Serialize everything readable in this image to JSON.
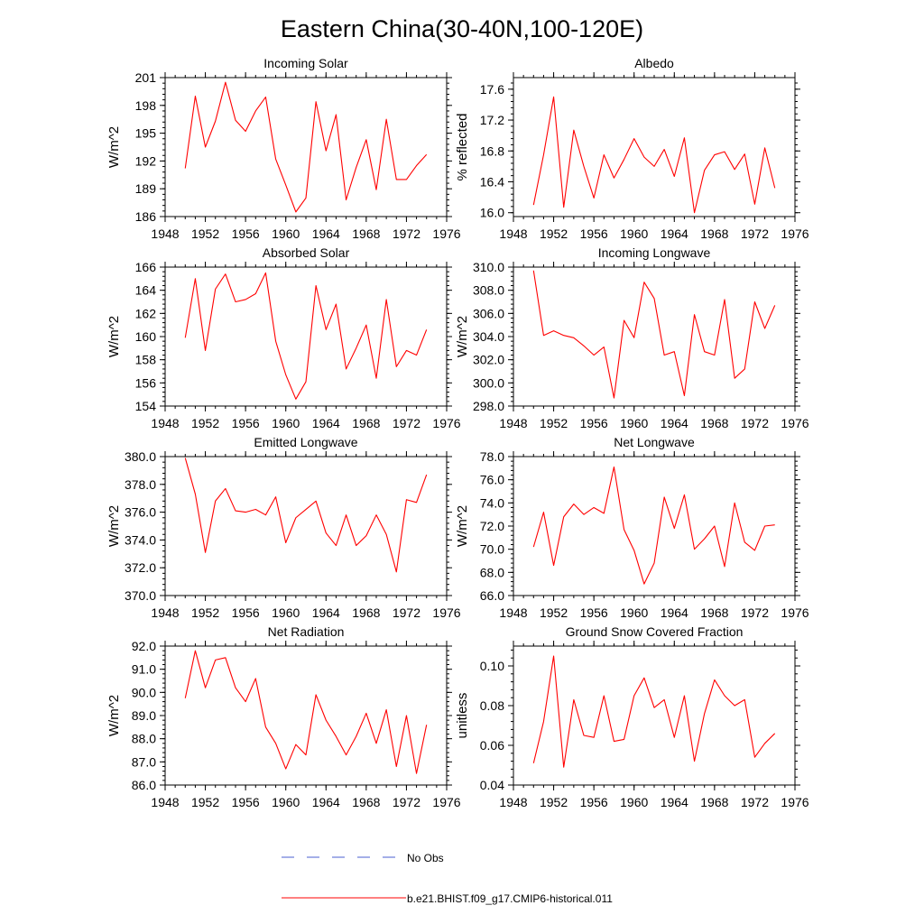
{
  "figure": {
    "title": "Eastern China(30-40N,100-120E)",
    "legend": {
      "obs_label": "No Obs",
      "model_label": "b.e21.BHIST.f09_g17.CMIP6-historical.011",
      "obs_color": "#4a5fd0",
      "model_color": "#ff0000"
    }
  },
  "chart_data": [
    {
      "type": "line",
      "title": "Incoming Solar",
      "ylabel": "W/m^2",
      "xlim": [
        1948,
        1976
      ],
      "xticks": [
        "1948",
        "1952",
        "1956",
        "1960",
        "1964",
        "1968",
        "1972",
        "1976"
      ],
      "ylim": [
        186,
        201
      ],
      "yticks": [
        "186",
        "189",
        "192",
        "195",
        "198",
        "201"
      ],
      "x": [
        1950,
        1951,
        1952,
        1953,
        1954,
        1955,
        1956,
        1957,
        1958,
        1959,
        1960,
        1961,
        1962,
        1963,
        1964,
        1965,
        1966,
        1967,
        1968,
        1969,
        1970,
        1971,
        1972,
        1973,
        1974
      ],
      "series": [
        {
          "values": [
            191.2,
            199.0,
            193.5,
            196.3,
            200.5,
            196.4,
            195.2,
            197.4,
            198.9,
            192.2,
            189.4,
            186.5,
            188.0,
            198.4,
            193.1,
            197.0,
            187.8,
            191.3,
            194.3,
            188.9,
            196.5,
            190.0,
            190.0,
            191.5,
            192.7
          ]
        }
      ]
    },
    {
      "type": "line",
      "title": "Albedo",
      "ylabel": "% reflected",
      "xlim": [
        1948,
        1976
      ],
      "xticks": [
        "1948",
        "1952",
        "1956",
        "1960",
        "1964",
        "1968",
        "1972",
        "1976"
      ],
      "ylim": [
        15.95,
        17.75
      ],
      "yticks": [
        "16.0",
        "16.4",
        "16.8",
        "17.2",
        "17.6"
      ],
      "x": [
        1950,
        1951,
        1952,
        1953,
        1954,
        1955,
        1956,
        1957,
        1958,
        1959,
        1960,
        1961,
        1962,
        1963,
        1964,
        1965,
        1966,
        1967,
        1968,
        1969,
        1970,
        1971,
        1972,
        1973,
        1974
      ],
      "series": [
        {
          "values": [
            16.1,
            16.75,
            17.5,
            16.07,
            17.07,
            16.6,
            16.19,
            16.75,
            16.45,
            16.69,
            16.96,
            16.72,
            16.6,
            16.82,
            16.47,
            16.97,
            16.0,
            16.55,
            16.75,
            16.79,
            16.56,
            16.76,
            16.11,
            16.84,
            16.32
          ]
        }
      ]
    },
    {
      "type": "line",
      "title": "Absorbed Solar",
      "ylabel": "W/m^2",
      "xlim": [
        1948,
        1976
      ],
      "xticks": [
        "1948",
        "1952",
        "1956",
        "1960",
        "1964",
        "1968",
        "1972",
        "1976"
      ],
      "ylim": [
        154,
        166
      ],
      "yticks": [
        "154",
        "156",
        "158",
        "160",
        "162",
        "164",
        "166"
      ],
      "x": [
        1950,
        1951,
        1952,
        1953,
        1954,
        1955,
        1956,
        1957,
        1958,
        1959,
        1960,
        1961,
        1962,
        1963,
        1964,
        1965,
        1966,
        1967,
        1968,
        1969,
        1970,
        1971,
        1972,
        1973,
        1974
      ],
      "series": [
        {
          "values": [
            159.9,
            165.0,
            158.8,
            164.1,
            165.4,
            163.0,
            163.2,
            163.7,
            165.5,
            159.6,
            156.7,
            154.6,
            156.1,
            164.4,
            160.6,
            162.8,
            157.2,
            159.0,
            161.0,
            156.4,
            163.2,
            157.4,
            158.8,
            158.4,
            160.6
          ]
        }
      ]
    },
    {
      "type": "line",
      "title": "Incoming Longwave",
      "ylabel": "W/m^2",
      "xlim": [
        1948,
        1976
      ],
      "xticks": [
        "1948",
        "1952",
        "1956",
        "1960",
        "1964",
        "1968",
        "1972",
        "1976"
      ],
      "ylim": [
        298.0,
        310.0
      ],
      "yticks": [
        "298.0",
        "300.0",
        "302.0",
        "304.0",
        "306.0",
        "308.0",
        "310.0"
      ],
      "x": [
        1950,
        1951,
        1952,
        1953,
        1954,
        1955,
        1956,
        1957,
        1958,
        1959,
        1960,
        1961,
        1962,
        1963,
        1964,
        1965,
        1966,
        1967,
        1968,
        1969,
        1970,
        1971,
        1972,
        1973,
        1974
      ],
      "series": [
        {
          "values": [
            309.7,
            304.1,
            304.5,
            304.1,
            303.9,
            303.2,
            302.4,
            303.1,
            298.7,
            305.4,
            303.9,
            308.7,
            307.3,
            302.4,
            302.7,
            298.9,
            305.9,
            302.7,
            302.4,
            307.2,
            300.4,
            301.2,
            307.0,
            304.7,
            306.7
          ]
        }
      ]
    },
    {
      "type": "line",
      "title": "Emitted Longwave",
      "ylabel": "W/m^2",
      "xlim": [
        1948,
        1976
      ],
      "xticks": [
        "1948",
        "1952",
        "1956",
        "1960",
        "1964",
        "1968",
        "1972",
        "1976"
      ],
      "ylim": [
        370.0,
        380.0
      ],
      "yticks": [
        "370.0",
        "372.0",
        "374.0",
        "376.0",
        "378.0",
        "380.0"
      ],
      "x": [
        1950,
        1951,
        1952,
        1953,
        1954,
        1955,
        1956,
        1957,
        1958,
        1959,
        1960,
        1961,
        1962,
        1963,
        1964,
        1965,
        1966,
        1967,
        1968,
        1969,
        1970,
        1971,
        1972,
        1973,
        1974
      ],
      "series": [
        {
          "values": [
            379.9,
            377.3,
            373.1,
            376.8,
            377.7,
            376.1,
            376.0,
            376.2,
            375.8,
            377.1,
            373.8,
            375.6,
            376.2,
            376.8,
            374.5,
            373.6,
            375.8,
            373.6,
            374.3,
            375.8,
            374.4,
            371.7,
            376.9,
            376.7,
            378.7
          ]
        }
      ]
    },
    {
      "type": "line",
      "title": "Net Longwave",
      "ylabel": "W/m^2",
      "xlim": [
        1948,
        1976
      ],
      "xticks": [
        "1948",
        "1952",
        "1956",
        "1960",
        "1964",
        "1968",
        "1972",
        "1976"
      ],
      "ylim": [
        66.0,
        78.0
      ],
      "yticks": [
        "66.0",
        "68.0",
        "70.0",
        "72.0",
        "74.0",
        "76.0",
        "78.0"
      ],
      "x": [
        1950,
        1951,
        1952,
        1953,
        1954,
        1955,
        1956,
        1957,
        1958,
        1959,
        1960,
        1961,
        1962,
        1963,
        1964,
        1965,
        1966,
        1967,
        1968,
        1969,
        1970,
        1971,
        1972,
        1973,
        1974
      ],
      "series": [
        {
          "values": [
            70.2,
            73.2,
            68.6,
            72.8,
            73.9,
            73.0,
            73.6,
            73.1,
            77.1,
            71.7,
            69.9,
            67.0,
            68.8,
            74.5,
            71.8,
            74.7,
            70.0,
            70.9,
            72.0,
            68.5,
            74.0,
            70.6,
            69.9,
            72.0,
            72.1
          ]
        }
      ]
    },
    {
      "type": "line",
      "title": "Net Radiation",
      "ylabel": "W/m^2",
      "xlim": [
        1948,
        1976
      ],
      "xticks": [
        "1948",
        "1952",
        "1956",
        "1960",
        "1964",
        "1968",
        "1972",
        "1976"
      ],
      "ylim": [
        86.0,
        92.0
      ],
      "yticks": [
        "86.0",
        "87.0",
        "88.0",
        "89.0",
        "90.0",
        "91.0",
        "92.0"
      ],
      "x": [
        1950,
        1951,
        1952,
        1953,
        1954,
        1955,
        1956,
        1957,
        1958,
        1959,
        1960,
        1961,
        1962,
        1963,
        1964,
        1965,
        1966,
        1967,
        1968,
        1969,
        1970,
        1971,
        1972,
        1973,
        1974
      ],
      "series": [
        {
          "values": [
            89.75,
            91.8,
            90.2,
            91.4,
            91.5,
            90.2,
            89.6,
            90.6,
            88.5,
            87.8,
            86.7,
            87.75,
            87.3,
            89.9,
            88.8,
            88.1,
            87.3,
            88.1,
            89.1,
            87.8,
            89.25,
            86.8,
            89.0,
            86.5,
            88.6
          ]
        }
      ]
    },
    {
      "type": "line",
      "title": "Ground Snow Covered Fraction",
      "ylabel": "unitless",
      "xlim": [
        1948,
        1976
      ],
      "xticks": [
        "1948",
        "1952",
        "1956",
        "1960",
        "1964",
        "1968",
        "1972",
        "1976"
      ],
      "ylim": [
        0.04,
        0.11
      ],
      "yticks": [
        "0.04",
        "0.06",
        "0.08",
        "0.10"
      ],
      "x": [
        1950,
        1951,
        1952,
        1953,
        1954,
        1955,
        1956,
        1957,
        1958,
        1959,
        1960,
        1961,
        1962,
        1963,
        1964,
        1965,
        1966,
        1967,
        1968,
        1969,
        1970,
        1971,
        1972,
        1973,
        1974
      ],
      "series": [
        {
          "values": [
            0.051,
            0.072,
            0.105,
            0.049,
            0.083,
            0.065,
            0.064,
            0.085,
            0.062,
            0.063,
            0.085,
            0.094,
            0.079,
            0.083,
            0.064,
            0.085,
            0.052,
            0.076,
            0.093,
            0.085,
            0.08,
            0.083,
            0.054,
            0.061,
            0.066
          ]
        }
      ]
    }
  ]
}
